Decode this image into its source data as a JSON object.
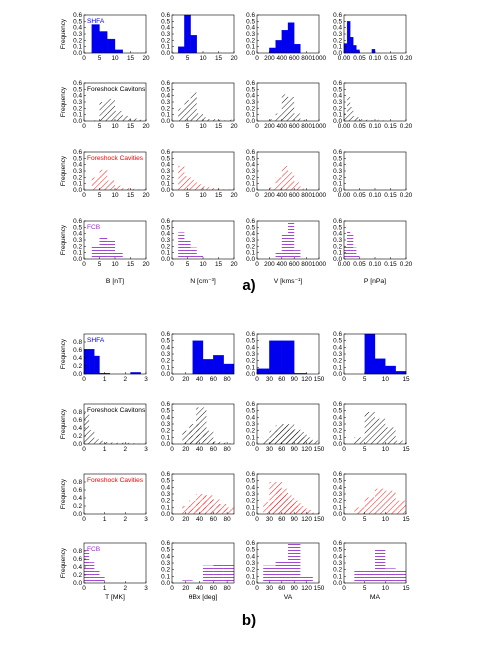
{
  "colors": {
    "SHFA": "#0000ee",
    "Foreshock Cavitons": "#000000",
    "Foreshock Cavities": "#ff0000",
    "FCB": "#9933cc"
  },
  "fills": {
    "SHFA": "solid",
    "Foreshock Cavitons": "hatch-diagonal",
    "Foreshock Cavities": "hatch-diagonal",
    "FCB": "hatch-horizontal"
  },
  "chart_data": [
    {
      "panel_label": "a)",
      "type": "bar",
      "ylabel": "Frequency",
      "rows": [
        "SHFA",
        "Foreshock Cavitons",
        "Foreshock Cavities",
        "FCB"
      ],
      "columns": [
        {
          "xlabel": "B [nT]",
          "xlim": [
            0,
            20
          ],
          "xticks": [
            0,
            5,
            10,
            15,
            20
          ],
          "ylim": [
            0,
            0.6
          ],
          "yticks": [
            0.0,
            0.1,
            0.2,
            0.3,
            0.4,
            0.5,
            0.6
          ],
          "bin_width": 2.5,
          "series": [
            {
              "row": "SHFA",
              "bins": [
                2.5,
                5,
                7.5,
                10
              ],
              "values": [
                0.45,
                0.34,
                0.22,
                0.05
              ]
            },
            {
              "row": "Foreshock Cavitons",
              "bins": [
                2.5,
                5,
                7.5,
                10,
                12.5,
                15,
                17.5
              ],
              "values": [
                0.01,
                0.3,
                0.35,
                0.16,
                0.08,
                0.04,
                0.02
              ]
            },
            {
              "row": "Foreshock Cavities",
              "bins": [
                2.5,
                5,
                7.5,
                10,
                12.5,
                15,
                17.5
              ],
              "values": [
                0.2,
                0.32,
                0.15,
                0.07,
                0.03,
                0.02,
                0.01
              ]
            },
            {
              "row": "FCB",
              "bins": [
                2.5,
                5,
                7.5,
                10,
                12.5
              ],
              "values": [
                0.22,
                0.35,
                0.3,
                0.1,
                0.03
              ]
            }
          ]
        },
        {
          "xlabel": "N [cm⁻³]",
          "xlim": [
            0,
            20
          ],
          "xticks": [
            0,
            5,
            10,
            15,
            20
          ],
          "ylim": [
            0,
            0.6
          ],
          "yticks": [
            0.0,
            0.1,
            0.2,
            0.3,
            0.4,
            0.5,
            0.6
          ],
          "bin_width": 2,
          "series": [
            {
              "row": "SHFA",
              "bins": [
                2,
                4,
                6
              ],
              "values": [
                0.1,
                0.6,
                0.28
              ]
            },
            {
              "row": "Foreshock Cavitons",
              "bins": [
                2,
                4,
                6,
                8,
                10,
                12,
                14,
                16,
                18
              ],
              "values": [
                0.2,
                0.33,
                0.45,
                0.12,
                0.06,
                0.03,
                0.02,
                0.01,
                0.02
              ]
            },
            {
              "row": "Foreshock Cavities",
              "bins": [
                2,
                4,
                6,
                8,
                10,
                12,
                14,
                16,
                18
              ],
              "values": [
                0.38,
                0.22,
                0.16,
                0.09,
                0.06,
                0.03,
                0.02,
                0.01,
                0.01
              ]
            },
            {
              "row": "FCB",
              "bins": [
                2,
                4,
                6,
                8,
                10
              ],
              "values": [
                0.42,
                0.3,
                0.18,
                0.06,
                0.03
              ]
            }
          ]
        },
        {
          "xlabel": "V [kms⁻¹]",
          "xlim": [
            0,
            1000
          ],
          "xticks": [
            0,
            200,
            400,
            600,
            800,
            1000
          ],
          "ylim": [
            0,
            0.6
          ],
          "yticks": [
            0.0,
            0.1,
            0.2,
            0.3,
            0.4,
            0.5,
            0.6
          ],
          "bin_width": 100,
          "series": [
            {
              "row": "SHFA",
              "bins": [
                200,
                300,
                400,
                500,
                600
              ],
              "values": [
                0.08,
                0.2,
                0.36,
                0.48,
                0.14
              ]
            },
            {
              "row": "Foreshock Cavitons",
              "bins": [
                200,
                300,
                400,
                500,
                600,
                700
              ],
              "values": [
                0.03,
                0.12,
                0.42,
                0.38,
                0.12,
                0.02
              ]
            },
            {
              "row": "Foreshock Cavities",
              "bins": [
                200,
                300,
                400,
                500,
                600,
                700
              ],
              "values": [
                0.04,
                0.2,
                0.38,
                0.28,
                0.12,
                0.02
              ]
            },
            {
              "row": "FCB",
              "bins": [
                300,
                400,
                500,
                600
              ],
              "values": [
                0.12,
                0.4,
                0.6,
                0.14
              ]
            }
          ]
        },
        {
          "xlabel": "P [nPa]",
          "xlim": [
            0,
            0.2
          ],
          "xticks": [
            0.0,
            0.05,
            0.1,
            0.15,
            0.2
          ],
          "ylim": [
            0,
            0.6
          ],
          "yticks": [
            0.0,
            0.1,
            0.2,
            0.3,
            0.4,
            0.5,
            0.6
          ],
          "bin_width": 0.01,
          "series": [
            {
              "row": "SHFA",
              "bins": [
                0.0,
                0.01,
                0.02,
                0.03,
                0.04,
                0.09
              ],
              "values": [
                0.15,
                0.5,
                0.25,
                0.12,
                0.05,
                0.06
              ]
            },
            {
              "row": "Foreshock Cavitons",
              "bins": [
                0.0,
                0.01,
                0.02,
                0.03,
                0.04,
                0.05,
                0.06,
                0.07,
                0.08,
                0.09,
                0.1,
                0.11,
                0.12,
                0.13
              ],
              "values": [
                0.12,
                0.38,
                0.22,
                0.08,
                0.06,
                0.03,
                0.03,
                0.02,
                0.02,
                0.01,
                0.01,
                0.02,
                0.01,
                0.01
              ]
            },
            {
              "row": "Foreshock Cavities",
              "bins": [],
              "values": []
            },
            {
              "row": "FCB",
              "bins": [
                0.0,
                0.01,
                0.02,
                0.03,
                0.04,
                0.05,
                0.06,
                0.07,
                0.08,
                0.09
              ],
              "values": [
                0.2,
                0.45,
                0.4,
                0.18,
                0.06,
                0.02,
                0.01,
                0.01,
                0.01,
                0.02
              ]
            }
          ]
        }
      ]
    },
    {
      "panel_label": "b)",
      "type": "bar",
      "ylabel": "Frequency",
      "rows": [
        "SHFA",
        "Foreshock Cavitons",
        "Foreshock Cavities",
        "FCB"
      ],
      "columns": [
        {
          "xlabel": "T [MK]",
          "xlim": [
            0,
            3
          ],
          "xticks": [
            0,
            1,
            2,
            3
          ],
          "ylim": [
            0,
            1.0
          ],
          "yticks": [
            0.0,
            0.2,
            0.4,
            0.6,
            0.8
          ],
          "bin_width": 0.25,
          "series": [
            {
              "row": "SHFA",
              "bins": [
                0,
                0.25,
                0.5,
                0.75,
                1.0,
                1.25,
                1.5,
                1.75,
                2.0,
                2.25,
                2.5,
                2.75
              ],
              "values": [
                0.62,
                0.62,
                0.45,
                0.02,
                0.02,
                0.0,
                0.0,
                0.0,
                0.0,
                0.04,
                0.04,
                0.0
              ]
            },
            {
              "row": "Foreshock Cavitons",
              "bins": [
                0,
                0.25,
                0.5,
                0.75,
                1.0,
                1.25,
                1.5,
                1.75,
                2.0,
                2.25,
                2.5,
                2.75
              ],
              "values": [
                0.78,
                0.35,
                0.12,
                0.08,
                0.05,
                0.04,
                0.03,
                0.03,
                0.03,
                0.02,
                0.01,
                0.01
              ]
            },
            {
              "row": "Foreshock Cavities",
              "bins": [],
              "values": []
            },
            {
              "row": "FCB",
              "bins": [
                0,
                0.25,
                0.5,
                0.75
              ],
              "values": [
                0.82,
                0.52,
                0.35,
                0.18
              ]
            }
          ]
        },
        {
          "xlabel": "θBx [deg]",
          "xlim": [
            0,
            90
          ],
          "xticks": [
            0,
            20,
            40,
            60,
            80
          ],
          "ylim": [
            0,
            0.6
          ],
          "yticks": [
            0.0,
            0.1,
            0.2,
            0.3,
            0.4,
            0.5,
            0.6
          ],
          "bin_width": 15,
          "series": [
            {
              "row": "SHFA",
              "bins": [
                30,
                45,
                60,
                75
              ],
              "values": [
                0.5,
                0.22,
                0.28,
                0.15
              ]
            },
            {
              "row": "Foreshock Cavitons",
              "bins": [
                15,
                25,
                35,
                45,
                55,
                65,
                75
              ],
              "values": [
                0.2,
                0.3,
                0.55,
                0.2,
                0.04,
                0.02,
                0.01
              ]
            },
            {
              "row": "Foreshock Cavities",
              "bins": [
                15,
                25,
                35,
                45,
                55,
                65,
                75
              ],
              "values": [
                0.12,
                0.2,
                0.3,
                0.28,
                0.22,
                0.15,
                0.1
              ]
            },
            {
              "row": "FCB",
              "bins": [
                15,
                30,
                45,
                60,
                75
              ],
              "values": [
                0.04,
                0.03,
                0.26,
                0.28,
                0.27
              ]
            }
          ]
        },
        {
          "xlabel": "VA",
          "xlim": [
            0,
            150
          ],
          "xticks": [
            0,
            30,
            60,
            90,
            120,
            150
          ],
          "ylim": [
            0,
            0.6
          ],
          "yticks": [
            0.0,
            0.1,
            0.2,
            0.3,
            0.4,
            0.5,
            0.6
          ],
          "bin_width": 30,
          "series": [
            {
              "row": "SHFA",
              "bins": [
                0,
                30,
                60,
                90
              ],
              "values": [
                0.08,
                0.5,
                0.5,
                0.01
              ]
            },
            {
              "row": "Foreshock Cavitons",
              "bins": [
                15,
                30,
                45,
                60,
                75,
                90,
                105,
                120
              ],
              "values": [
                0.08,
                0.2,
                0.28,
                0.3,
                0.22,
                0.18,
                0.1,
                0.05
              ]
            },
            {
              "row": "Foreshock Cavities",
              "bins": [
                15,
                30,
                45,
                60,
                75,
                90,
                105,
                120
              ],
              "values": [
                0.18,
                0.48,
                0.38,
                0.28,
                0.2,
                0.12,
                0.06,
                0.02
              ]
            },
            {
              "row": "FCB",
              "bins": [
                15,
                45,
                75,
                105
              ],
              "values": [
                0.26,
                0.32,
                0.6,
                0.1
              ]
            }
          ]
        },
        {
          "xlabel": "MA",
          "xlim": [
            0,
            15
          ],
          "xticks": [
            0,
            5,
            10,
            15
          ],
          "ylim": [
            0,
            0.6
          ],
          "yticks": [
            0.0,
            0.1,
            0.2,
            0.3,
            0.4,
            0.5,
            0.6
          ],
          "bin_width": 2.5,
          "series": [
            {
              "row": "SHFA",
              "bins": [
                5,
                7.5,
                10,
                12.5
              ],
              "values": [
                0.6,
                0.23,
                0.12,
                0.04
              ]
            },
            {
              "row": "Foreshock Cavitons",
              "bins": [
                2.5,
                5,
                7.5,
                10,
                12.5
              ],
              "values": [
                0.1,
                0.48,
                0.38,
                0.25,
                0.05
              ]
            },
            {
              "row": "Foreshock Cavities",
              "bins": [
                2.5,
                5,
                7.5,
                10,
                12.5
              ],
              "values": [
                0.1,
                0.25,
                0.38,
                0.35,
                0.2
              ]
            },
            {
              "row": "FCB",
              "bins": [
                2.5,
                5,
                7.5,
                10,
                12.5
              ],
              "values": [
                0.18,
                0.2,
                0.52,
                0.22,
                0.18
              ]
            }
          ]
        }
      ]
    }
  ]
}
